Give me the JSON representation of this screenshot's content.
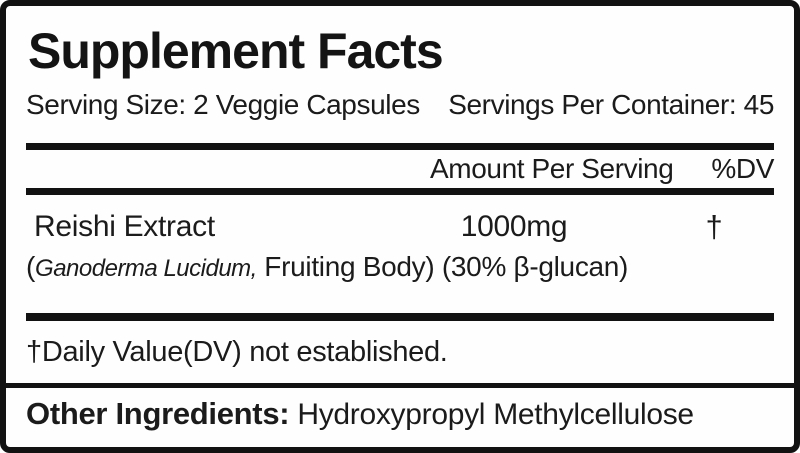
{
  "label": {
    "title": "Supplement Facts",
    "serving_size": "Serving Size: 2 Veggie Capsules",
    "servings_per_container": "Servings Per Container: 45",
    "columns": {
      "amount": "Amount Per Serving",
      "dv": "%DV"
    },
    "ingredient": {
      "name": "Reishi Extract",
      "amount": "1000mg",
      "dv": "†",
      "detail_prefix": "(",
      "detail_italic": "Ganoderma Lucidum,",
      "detail_rest": " Fruiting Body) (30% β-glucan)"
    },
    "footnote": "†Daily Value(DV) not established.",
    "other_ingredients": {
      "label": "Other Ingredients:",
      "value": " Hydroxypropyl Methylcellulose"
    },
    "colors": {
      "text": "#141414",
      "background": "#fefefe",
      "border": "#121212"
    }
  }
}
